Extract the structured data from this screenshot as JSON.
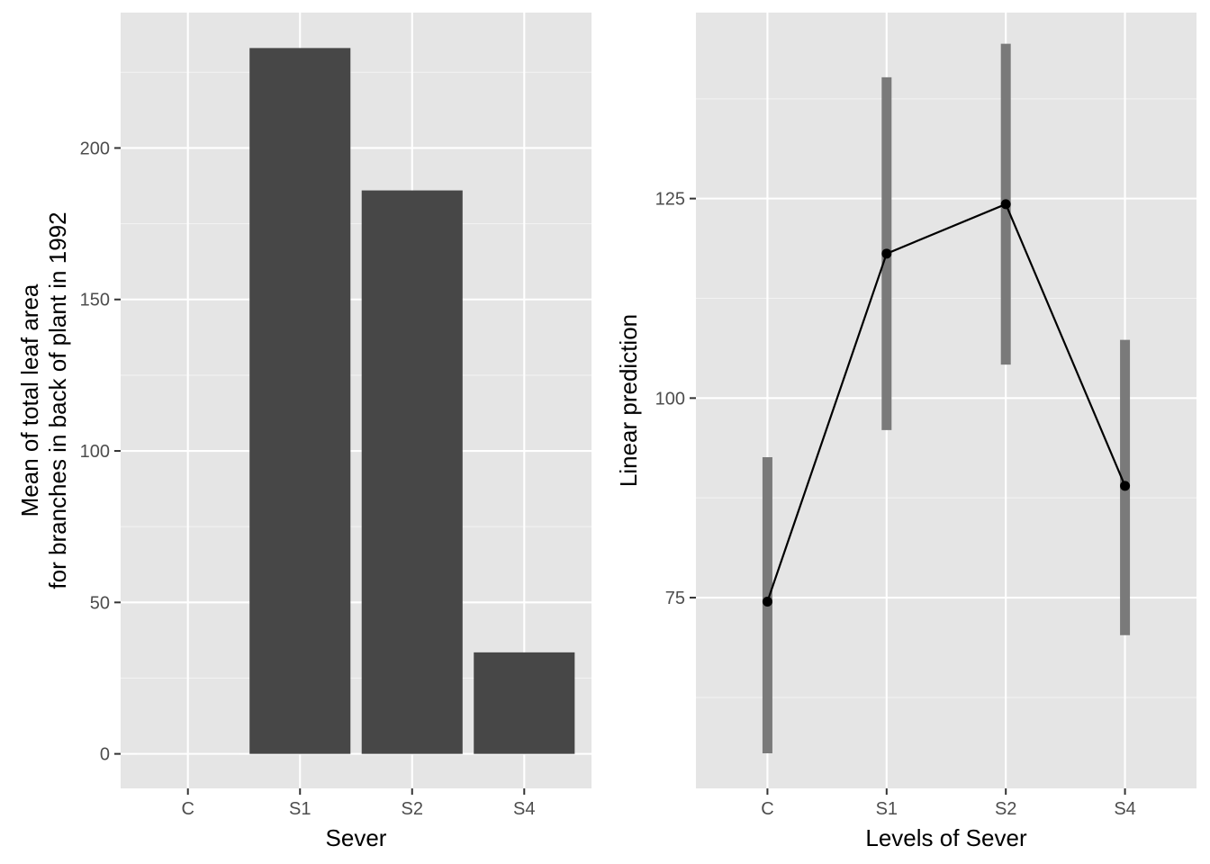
{
  "colors": {
    "panel_background": "#e5e5e5",
    "grid_major": "#ffffff",
    "grid_minor": "#f2f2f2",
    "bar_fill": "#474747",
    "ci_bar": "#7a7a7a",
    "line": "#000000",
    "tick_text": "#4d4d4d"
  },
  "chart_data": [
    {
      "type": "bar",
      "categories": [
        "C",
        "S1",
        "S2",
        "S4"
      ],
      "values": [
        0,
        233,
        186,
        33.5
      ],
      "xlabel": "Sever",
      "ylabel_lines": [
        "Mean of total leaf area",
        "for branches in back of plant in 1992"
      ],
      "ylim": [
        -11.4,
        244.7
      ],
      "yticks": [
        0,
        50,
        100,
        150,
        200
      ],
      "ytick_labels": [
        "0",
        "50",
        "100",
        "150",
        "200"
      ],
      "grid": true
    },
    {
      "type": "line",
      "categories": [
        "C",
        "S1",
        "S2",
        "S4"
      ],
      "values": [
        74.5,
        118.1,
        124.3,
        89.0
      ],
      "ci_low": [
        55.5,
        96.0,
        104.2,
        70.3
      ],
      "ci_high": [
        92.6,
        140.2,
        144.4,
        107.3
      ],
      "xlabel": "Levels of Sever",
      "ylabel": "Linear prediction",
      "ylim": [
        51.1,
        148.3
      ],
      "yticks": [
        75,
        100,
        125
      ],
      "ytick_labels": [
        "75",
        "100",
        "125"
      ],
      "grid": true
    }
  ]
}
